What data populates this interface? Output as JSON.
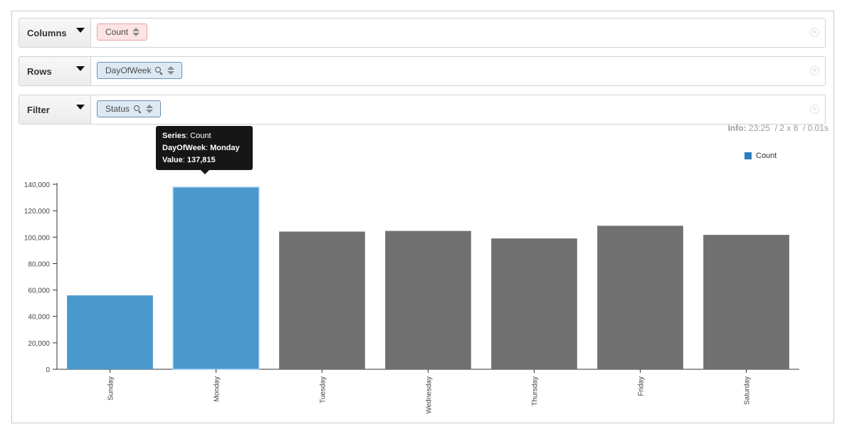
{
  "toolbar": {
    "columns": {
      "label": "Columns",
      "pill": "Count"
    },
    "rows": {
      "label": "Rows",
      "pill": "DayOfWeek"
    },
    "filter": {
      "label": "Filter",
      "pill": "Status"
    }
  },
  "info": {
    "label": "Info:",
    "time": "23:25",
    "size": "/ 2 x 8",
    "duration": "/ 0.01s"
  },
  "tooltip": {
    "series_key": "Series",
    "series_val": "Count",
    "dim_key": "DayOfWeek",
    "dim_val": "Monday",
    "value_key": "Value",
    "value_val": "137,815"
  },
  "colors": {
    "highlight": "#4a98cc",
    "bar": "#707070",
    "legend": "#2f7ec0"
  },
  "chart_data": {
    "type": "bar",
    "title": "",
    "xlabel": "",
    "ylabel": "",
    "categories": [
      "Sunday",
      "Monday",
      "Tuesday",
      "Wednesday",
      "Thursday",
      "Friday",
      "Saturday"
    ],
    "series": [
      {
        "name": "Count",
        "values": [
          55900,
          137815,
          104200,
          104700,
          99000,
          108600,
          101700
        ]
      }
    ],
    "highlighted": [
      "Sunday",
      "Monday"
    ],
    "ylim": [
      0,
      140000
    ],
    "yticks": [
      "0",
      "20,000",
      "40,000",
      "60,000",
      "80,000",
      "100,000",
      "120,000",
      "140,000"
    ],
    "legend": "top-right",
    "grid": false
  }
}
